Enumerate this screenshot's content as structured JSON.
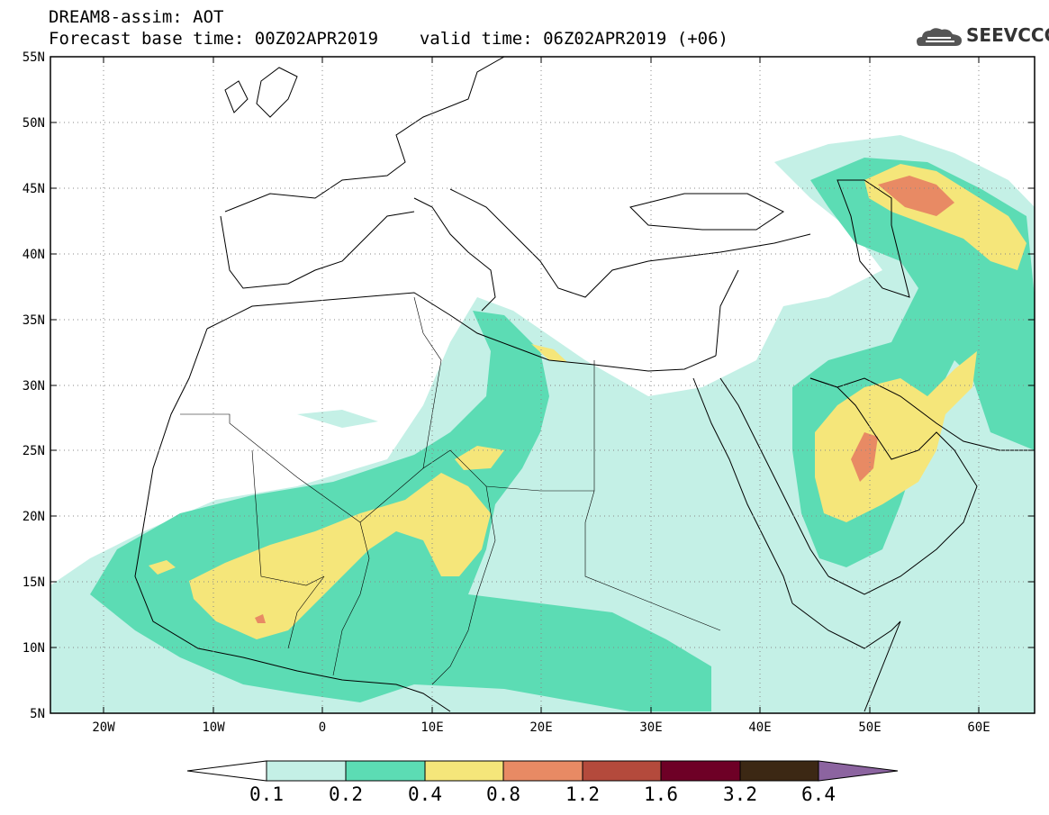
{
  "header": {
    "title_line1": "DREAM8-assim: AOT",
    "base_time": "Forecast base time: 00Z02APR2019",
    "valid_time": "valid time: 06Z02APR2019 (+06)"
  },
  "logo": {
    "text": "SEEVCCC",
    "icon": "cloud-icon"
  },
  "map": {
    "projection": "lat-lon",
    "lon_range": [
      -25,
      65
    ],
    "lat_range": [
      5,
      55
    ],
    "lat_ticks": [
      "5N",
      "10N",
      "15N",
      "20N",
      "25N",
      "30N",
      "35N",
      "40N",
      "45N",
      "50N",
      "55N"
    ],
    "lon_ticks": [
      "20W",
      "10W",
      "0",
      "10E",
      "20E",
      "30E",
      "40E",
      "50E",
      "60E"
    ],
    "grid": "dotted"
  },
  "colorbar": {
    "labels": [
      "0.1",
      "0.2",
      "0.4",
      "0.8",
      "1.2",
      "1.6",
      "3.2",
      "6.4"
    ],
    "colors": [
      "#ffffff",
      "#c4f0e6",
      "#5cdcb4",
      "#f5e67a",
      "#e88a64",
      "#b44a3c",
      "#6e0026",
      "#3c2814",
      "#8c64a0"
    ]
  }
}
